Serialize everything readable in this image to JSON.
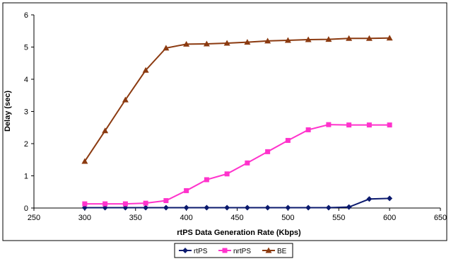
{
  "chart_data": {
    "type": "line",
    "xlabel": "rtPS Data Generation Rate (Kbps)",
    "ylabel": "Delay (sec)",
    "xlim": [
      250,
      650
    ],
    "ylim": [
      0,
      6
    ],
    "xticks": [
      250,
      300,
      350,
      400,
      450,
      500,
      550,
      600,
      650
    ],
    "yticks": [
      0,
      1,
      2,
      3,
      4,
      5,
      6
    ],
    "grid": false,
    "legend_position": "bottom-center",
    "x": [
      300,
      320,
      340,
      360,
      380,
      400,
      420,
      440,
      460,
      480,
      500,
      520,
      540,
      560,
      580,
      600
    ],
    "series": [
      {
        "name": "rtPS",
        "color": "#0b1a6e",
        "marker": "diamond",
        "values": [
          0.01,
          0.01,
          0.01,
          0.01,
          0.01,
          0.01,
          0.01,
          0.01,
          0.01,
          0.01,
          0.01,
          0.01,
          0.01,
          0.03,
          0.28,
          0.3
        ]
      },
      {
        "name": "nrtPS",
        "color": "#ff33cc",
        "marker": "square",
        "values": [
          0.13,
          0.13,
          0.13,
          0.15,
          0.23,
          0.54,
          0.88,
          1.06,
          1.4,
          1.75,
          2.1,
          2.43,
          2.59,
          2.58,
          2.58,
          2.58
        ]
      },
      {
        "name": "BE",
        "color": "#8b3a10",
        "marker": "triangle",
        "values": [
          1.45,
          2.4,
          3.36,
          4.28,
          4.97,
          5.09,
          5.1,
          5.12,
          5.15,
          5.19,
          5.21,
          5.23,
          5.24,
          5.27,
          5.27,
          5.28
        ]
      }
    ]
  }
}
